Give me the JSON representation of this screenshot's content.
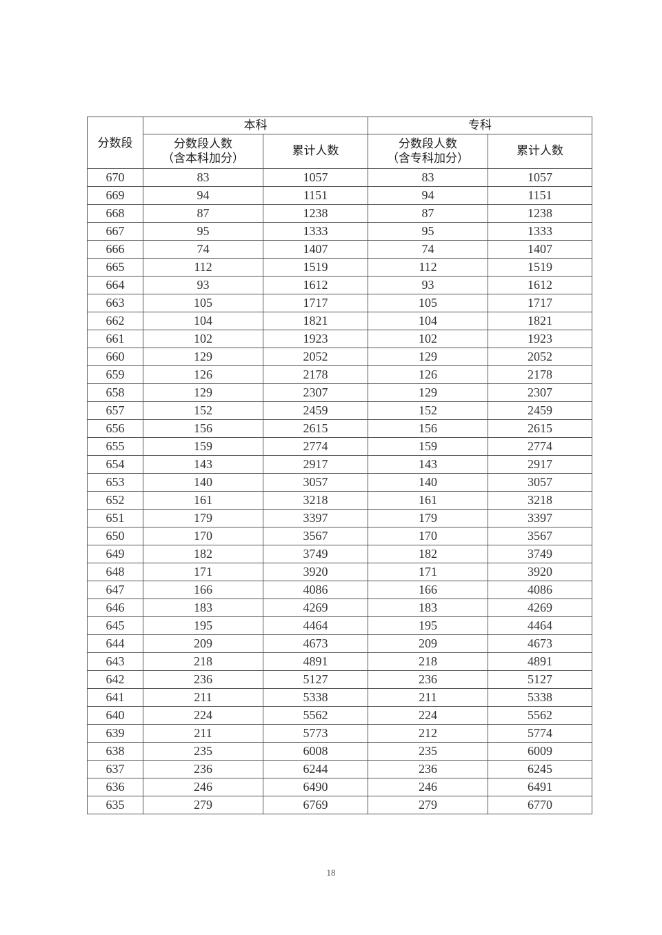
{
  "table": {
    "header": {
      "score_band": "分数段",
      "undergrad": "本科",
      "junior_college": "专科",
      "undergrad_count": [
        "分数段人数",
        "（含本科加分）"
      ],
      "undergrad_cumulative": "累计人数",
      "college_count": [
        "分数段人数",
        "（含专科加分）"
      ],
      "college_cumulative": "累计人数"
    },
    "rows": [
      [
        "670",
        "83",
        "1057",
        "83",
        "1057"
      ],
      [
        "669",
        "94",
        "1151",
        "94",
        "1151"
      ],
      [
        "668",
        "87",
        "1238",
        "87",
        "1238"
      ],
      [
        "667",
        "95",
        "1333",
        "95",
        "1333"
      ],
      [
        "666",
        "74",
        "1407",
        "74",
        "1407"
      ],
      [
        "665",
        "112",
        "1519",
        "112",
        "1519"
      ],
      [
        "664",
        "93",
        "1612",
        "93",
        "1612"
      ],
      [
        "663",
        "105",
        "1717",
        "105",
        "1717"
      ],
      [
        "662",
        "104",
        "1821",
        "104",
        "1821"
      ],
      [
        "661",
        "102",
        "1923",
        "102",
        "1923"
      ],
      [
        "660",
        "129",
        "2052",
        "129",
        "2052"
      ],
      [
        "659",
        "126",
        "2178",
        "126",
        "2178"
      ],
      [
        "658",
        "129",
        "2307",
        "129",
        "2307"
      ],
      [
        "657",
        "152",
        "2459",
        "152",
        "2459"
      ],
      [
        "656",
        "156",
        "2615",
        "156",
        "2615"
      ],
      [
        "655",
        "159",
        "2774",
        "159",
        "2774"
      ],
      [
        "654",
        "143",
        "2917",
        "143",
        "2917"
      ],
      [
        "653",
        "140",
        "3057",
        "140",
        "3057"
      ],
      [
        "652",
        "161",
        "3218",
        "161",
        "3218"
      ],
      [
        "651",
        "179",
        "3397",
        "179",
        "3397"
      ],
      [
        "650",
        "170",
        "3567",
        "170",
        "3567"
      ],
      [
        "649",
        "182",
        "3749",
        "182",
        "3749"
      ],
      [
        "648",
        "171",
        "3920",
        "171",
        "3920"
      ],
      [
        "647",
        "166",
        "4086",
        "166",
        "4086"
      ],
      [
        "646",
        "183",
        "4269",
        "183",
        "4269"
      ],
      [
        "645",
        "195",
        "4464",
        "195",
        "4464"
      ],
      [
        "644",
        "209",
        "4673",
        "209",
        "4673"
      ],
      [
        "643",
        "218",
        "4891",
        "218",
        "4891"
      ],
      [
        "642",
        "236",
        "5127",
        "236",
        "5127"
      ],
      [
        "641",
        "211",
        "5338",
        "211",
        "5338"
      ],
      [
        "640",
        "224",
        "5562",
        "224",
        "5562"
      ],
      [
        "639",
        "211",
        "5773",
        "212",
        "5774"
      ],
      [
        "638",
        "235",
        "6008",
        "235",
        "6009"
      ],
      [
        "637",
        "236",
        "6244",
        "236",
        "6245"
      ],
      [
        "636",
        "246",
        "6490",
        "246",
        "6491"
      ],
      [
        "635",
        "279",
        "6769",
        "279",
        "6770"
      ]
    ]
  },
  "page_number": "18"
}
